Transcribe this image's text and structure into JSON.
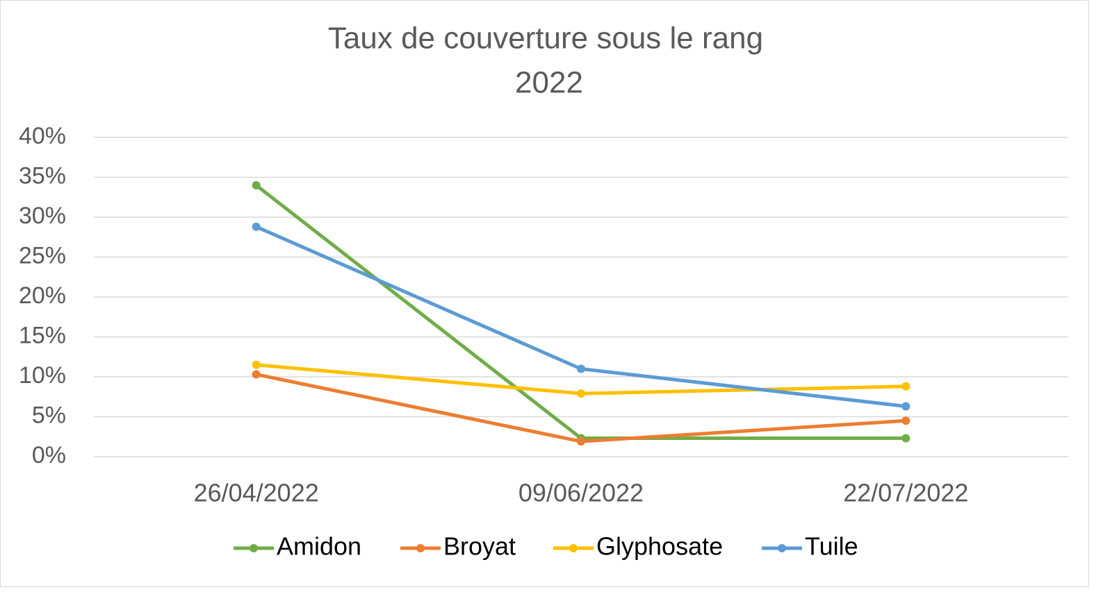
{
  "chart_data": {
    "type": "line",
    "title": "Taux de couverture sous le rang",
    "subtitle": "2022",
    "categories": [
      "26/04/2022",
      "09/06/2022",
      "22/07/2022"
    ],
    "series": [
      {
        "name": "Amidon",
        "color": "#70ad47",
        "values": [
          34.0,
          2.3,
          2.3
        ]
      },
      {
        "name": "Broyat",
        "color": "#ed7d31",
        "values": [
          10.3,
          1.9,
          4.5
        ]
      },
      {
        "name": "Glyphosate",
        "color": "#ffc000",
        "values": [
          11.5,
          7.9,
          8.8
        ]
      },
      {
        "name": "Tuile",
        "color": "#5b9bd5",
        "values": [
          28.8,
          11.0,
          6.3
        ]
      }
    ],
    "ylim": [
      0,
      40
    ],
    "yticks": [
      {
        "value": 0,
        "label": "0%"
      },
      {
        "value": 5,
        "label": "5%"
      },
      {
        "value": 10,
        "label": "10%"
      },
      {
        "value": 15,
        "label": "15%"
      },
      {
        "value": 20,
        "label": "20%"
      },
      {
        "value": 25,
        "label": "25%"
      },
      {
        "value": 30,
        "label": "30%"
      },
      {
        "value": 35,
        "label": "35%"
      },
      {
        "value": 40,
        "label": "40%"
      }
    ],
    "grid": true,
    "legend": "bottom"
  }
}
